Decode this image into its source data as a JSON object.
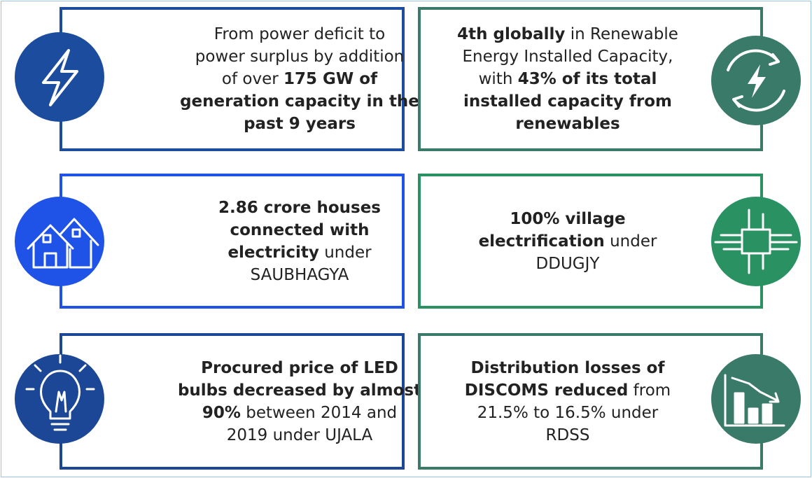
{
  "cards": [
    {
      "color": "#1b4c9e",
      "lines": [
        [
          {
            "text": "From power deficit to",
            "bold": false
          }
        ],
        [
          {
            "text": "power surplus by addition",
            "bold": false
          }
        ],
        [
          {
            "text": "of over ",
            "bold": false
          },
          {
            "text": "175 GW of",
            "bold": true
          }
        ],
        [
          {
            "text": "generation capacity in the",
            "bold": true
          }
        ],
        [
          {
            "text": "past 9 years",
            "bold": true
          }
        ]
      ]
    },
    {
      "color": "#3a7a68",
      "lines": [
        [
          {
            "text": "4th globally",
            "bold": true
          },
          {
            "text": " in Renewable",
            "bold": false
          }
        ],
        [
          {
            "text": "Energy Installed Capacity,",
            "bold": false
          }
        ],
        [
          {
            "text": "with ",
            "bold": false
          },
          {
            "text": "43% of its total",
            "bold": true
          }
        ],
        [
          {
            "text": "installed capacity from",
            "bold": true
          }
        ],
        [
          {
            "text": "renewables",
            "bold": true
          }
        ]
      ]
    },
    {
      "color": "#1f52e6",
      "lines": [
        [
          {
            "text": "2.86 crore houses",
            "bold": true
          }
        ],
        [
          {
            "text": "connected with",
            "bold": true
          }
        ],
        [
          {
            "text": "electricity",
            "bold": true
          },
          {
            "text": " under",
            "bold": false
          }
        ],
        [
          {
            "text": "SAUBHAGYA",
            "bold": false
          }
        ]
      ]
    },
    {
      "color": "#2a9162",
      "lines": [
        [
          {
            "text": "100% village",
            "bold": true
          }
        ],
        [
          {
            "text": "electrification",
            "bold": true
          },
          {
            "text": " under",
            "bold": false
          }
        ],
        [
          {
            "text": "DDUGJY",
            "bold": false
          }
        ]
      ]
    },
    {
      "color": "#1b4796",
      "lines": [
        [
          {
            "text": "Procured price of LED",
            "bold": true
          }
        ],
        [
          {
            "text": "bulbs decreased by almost",
            "bold": true
          }
        ],
        [
          {
            "text": "90%",
            "bold": true
          },
          {
            "text": " between 2014 and",
            "bold": false
          }
        ],
        [
          {
            "text": "2019 under UJALA",
            "bold": false
          }
        ]
      ]
    },
    {
      "color": "#3a7a68",
      "lines": [
        [
          {
            "text": "Distribution losses of",
            "bold": true
          }
        ],
        [
          {
            "text": "DISCOMS reduced",
            "bold": true
          },
          {
            "text": " from",
            "bold": false
          }
        ],
        [
          {
            "text": "21.5% to 16.5% under",
            "bold": false
          }
        ],
        [
          {
            "text": "RDSS",
            "bold": false
          }
        ]
      ]
    }
  ]
}
